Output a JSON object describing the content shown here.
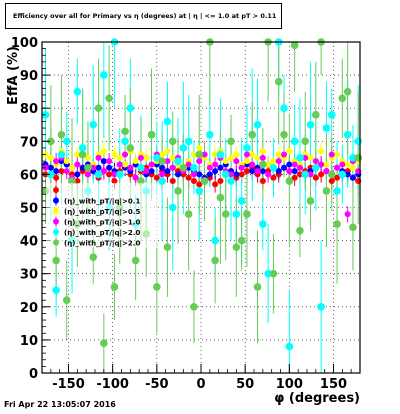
{
  "title": "Efficiency over all for Primary vs η (degrees) at | η | <= 1.0 at pT > 0.11",
  "timestamp": "Fri Apr 22 13:05:07 2016",
  "chart_data": {
    "type": "scatter",
    "xlabel": "φ (degrees)",
    "ylabel": "EffA (%)",
    "xlim": [
      -180,
      180
    ],
    "ylim": [
      0,
      100
    ],
    "x_ticks": [
      -150,
      -100,
      -50,
      0,
      50,
      100,
      150
    ],
    "y_ticks": [
      0,
      10,
      20,
      30,
      40,
      50,
      60,
      70,
      80,
      90,
      100
    ],
    "grid": true,
    "legend_position": "left-center",
    "x": [
      -176,
      -170,
      -164,
      -158,
      -152,
      -146,
      -140,
      -134,
      -128,
      -122,
      -116,
      -110,
      -104,
      -98,
      -92,
      -86,
      -80,
      -74,
      -68,
      -62,
      -56,
      -50,
      -44,
      -38,
      -32,
      -26,
      -20,
      -14,
      -8,
      -2,
      4,
      10,
      16,
      22,
      28,
      34,
      40,
      46,
      52,
      58,
      64,
      70,
      76,
      82,
      88,
      94,
      100,
      106,
      112,
      118,
      124,
      130,
      136,
      142,
      148,
      154,
      160,
      166,
      172,
      178
    ],
    "series": [
      {
        "name": "",
        "color": "#ff0000",
        "values": [
          60,
          62,
          59,
          61,
          63,
          60,
          58,
          61,
          60,
          62,
          59,
          61,
          60,
          58,
          61,
          63,
          60,
          59,
          61,
          62,
          60,
          59,
          61,
          60,
          58,
          61,
          60,
          59,
          58,
          57,
          58,
          59,
          57,
          58,
          60,
          61,
          59,
          60,
          61,
          62,
          60,
          58,
          61,
          59,
          60,
          62,
          61,
          59,
          60,
          61,
          62,
          59,
          60,
          61,
          58,
          59,
          60,
          61,
          59,
          58
        ]
      },
      {
        "name": "(η)_with_pT/|q|>0.1",
        "color": "#0000ff",
        "values": [
          63,
          62,
          61,
          64,
          63,
          62,
          60,
          62,
          63,
          61,
          62,
          64,
          62,
          61,
          63,
          62,
          61,
          63,
          62,
          60,
          61,
          63,
          62,
          61,
          62,
          60,
          61,
          62,
          61,
          60,
          59,
          60,
          61,
          62,
          63,
          61,
          60,
          62,
          63,
          61,
          62,
          61,
          63,
          62,
          61,
          62,
          63,
          61,
          62,
          60,
          61,
          62,
          63,
          61,
          60,
          62,
          61,
          60,
          59,
          60
        ]
      },
      {
        "name": "(η)_with_pT/|q|>0.5",
        "color": "#ffff00",
        "values": [
          66,
          65,
          63,
          67,
          64,
          62,
          66,
          68,
          65,
          63,
          66,
          67,
          64,
          66,
          65,
          63,
          67,
          64,
          66,
          65,
          63,
          64,
          66,
          67,
          65,
          63,
          62,
          64,
          66,
          68,
          65,
          63,
          66,
          67,
          64,
          65,
          66,
          63,
          64,
          66,
          65,
          67,
          63,
          64,
          66,
          65,
          67,
          64,
          63,
          66,
          65,
          64,
          67,
          63,
          65,
          66,
          64,
          63,
          62,
          64
        ]
      },
      {
        "name": "(η)_with_pT/|q|>1.0",
        "color": "#ff00ff",
        "values": [
          62,
          60,
          64,
          65,
          61,
          59,
          63,
          66,
          60,
          62,
          65,
          61,
          64,
          60,
          63,
          66,
          62,
          59,
          65,
          61,
          63,
          66,
          60,
          64,
          62,
          65,
          61,
          63,
          60,
          64,
          66,
          62,
          63,
          65,
          61,
          60,
          64,
          62,
          66,
          63,
          61,
          65,
          60,
          62,
          64,
          66,
          61,
          63,
          62,
          65,
          60,
          64,
          63,
          61,
          66,
          62,
          63,
          48,
          64,
          61
        ]
      },
      {
        "name": "(η)_with_pT/|q|>2.0",
        "color": "#00ffff",
        "values": [
          78,
          60,
          25,
          66,
          70,
          40,
          85,
          68,
          55,
          75,
          60,
          90,
          50,
          100,
          60,
          70,
          80,
          45,
          62,
          55,
          72,
          65,
          58,
          76,
          50,
          64,
          68,
          70,
          62,
          55,
          58,
          72,
          40,
          66,
          60,
          58,
          48,
          52,
          68,
          72,
          75,
          45,
          30,
          62,
          100,
          80,
          8,
          70,
          65,
          60,
          75,
          62,
          20,
          74,
          78,
          55,
          60,
          72,
          65,
          70
        ]
      },
      {
        "name": "(η)_with_pT/|q|>2.0",
        "color": "#66cc55",
        "values": [
          55,
          70,
          34,
          72,
          22,
          58,
          45,
          66,
          62,
          35,
          80,
          9,
          83,
          26,
          50,
          73,
          68,
          34,
          58,
          42,
          72,
          26,
          64,
          38,
          70,
          55,
          62,
          48,
          20,
          66,
          58,
          100,
          34,
          53,
          48,
          70,
          38,
          40,
          48,
          72,
          26,
          63,
          100,
          30,
          88,
          72,
          58,
          99,
          43,
          70,
          52,
          78,
          100,
          55,
          60,
          45,
          83,
          85,
          44,
          65
        ]
      }
    ]
  }
}
